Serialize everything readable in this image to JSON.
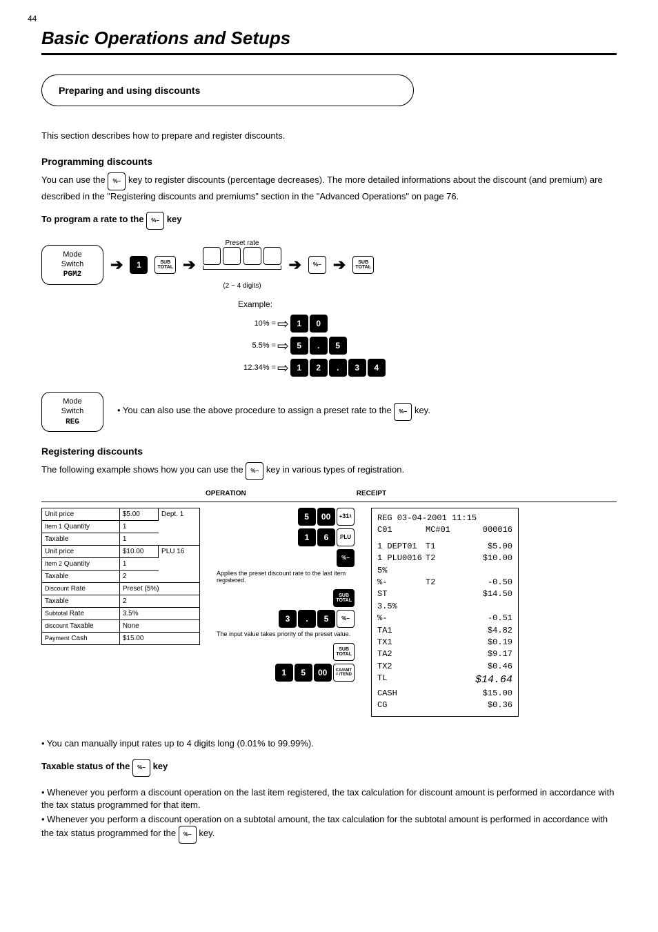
{
  "page_number": "44",
  "section_title": "Basic Operations and Setups",
  "box1_title": "Preparing and using discounts",
  "para1": "This section describes how to prepare and register discounts.",
  "programming_heading": "Programming discounts",
  "para2_a": "You can use the ",
  "para2_b": " key to register discounts (percentage decreases). The more detailed informations about the discount (and premium) are described in the \"Registering discounts and premiums\" section in the \"Advanced Operations\" on page 76.",
  "subhead1": "To program a rate to the ",
  "subhead1_b": " key",
  "flow_mode_label": "Mode\nSwitch",
  "key_1": "1",
  "key_subtotal": "SUB\nTOTAL",
  "over_label": "Preset rate",
  "key_pct_minus": "%−",
  "brace_label": "(2 ~ 4 digits)",
  "example_label": "Example:",
  "ex_10": "10% = ",
  "ex_55": "5.5% = ",
  "ex_1234": "12.34% = ",
  "mode_pgm_label": "Mode\nSwitch",
  "mode_pgm_value": "PGM2",
  "para3": "• You can also use the above procedure to assign a preset rate to the ",
  "para3_b": " key.",
  "reg_heading": "Registering discounts",
  "para4": "The following example shows how you can use the ",
  "para4_b": " key in various types of registration.",
  "flow_reg_label": "Mode\nSwitch",
  "flow_reg_value": "REG",
  "ex_table": {
    "header_op": "OPERATION",
    "header_rcpt": "RECEIPT",
    "rows": [
      [
        "Unit price",
        "$5.00",
        "Dept. 1"
      ],
      [
        "Item 1    Quantity",
        "1",
        ""
      ],
      [
        "Taxable",
        "1",
        ""
      ],
      [
        "Unit price",
        "$10.00",
        "PLU 16"
      ],
      [
        "Item 2    Quantity",
        "1",
        ""
      ],
      [
        "Taxable",
        "2",
        ""
      ],
      [
        "Discount     Rate",
        "Preset (5%)",
        ""
      ],
      [
        "Taxable",
        "2",
        ""
      ],
      [
        "Subtotal     Rate",
        "3.5%",
        ""
      ],
      [
        "discount     Taxable",
        "None",
        ""
      ],
      [
        "Payment    Cash",
        "$15.00",
        ""
      ]
    ]
  },
  "ops": [
    {
      "keys": [
        "5",
        "00",
        "+31"
      ],
      "note": ""
    },
    {
      "keys": [
        "1",
        "6",
        "PLU"
      ],
      "note": ""
    },
    {
      "keys": [
        "%−"
      ],
      "note": "Applies the preset discount rate to the last item registered.",
      "dark": true
    },
    {
      "keys": [
        "SUB"
      ],
      "note": "",
      "dark": true
    },
    {
      "keys": [
        "3",
        ".",
        "5",
        "%−"
      ],
      "note": "The input value takes priority of the preset value."
    },
    {
      "keys": [
        "SUB"
      ],
      "note": ""
    },
    {
      "keys": [
        "1",
        "5",
        "00",
        "CA/AMT"
      ],
      "note": ""
    }
  ],
  "receipt": {
    "header1": "REG  03-04-2001 11:15",
    "header2_l": "C01",
    "header2_c": "MC#01",
    "header2_r": "000016",
    "lines": [
      {
        "c1": "1 DEPT01",
        "c2": "T1",
        "c3": "$5.00"
      },
      {
        "c1": "1 PLU0016",
        "c2": "T2",
        "c3": "$10.00"
      },
      {
        "c1": "  5%",
        "c2": "",
        "c3": ""
      },
      {
        "c1": "%-",
        "c2": "T2",
        "c3": "-0.50"
      },
      {
        "c1": "ST",
        "c2": "",
        "c3": "$14.50"
      },
      {
        "c1": "  3.5%",
        "c2": "",
        "c3": ""
      },
      {
        "c1": "%-",
        "c2": "",
        "c3": "-0.51"
      },
      {
        "c1": "TA1",
        "c2": "",
        "c3": "$4.82"
      },
      {
        "c1": "TX1",
        "c2": "",
        "c3": "$0.19"
      },
      {
        "c1": "TA2",
        "c2": "",
        "c3": "$9.17"
      },
      {
        "c1": "TX2",
        "c2": "",
        "c3": "$0.46"
      }
    ],
    "total_label": "TL",
    "total_value": "$14.64",
    "cash_label": "CASH",
    "cash_value": "$15.00",
    "cg_label": "CG",
    "cg_value": "$0.36"
  },
  "footnote1_a": "• You can manually input rates up to 4 digits long (0.01% to 99.99%).",
  "tax_heading": "Taxable status of the ",
  "tax_heading_b": " key",
  "foot_para_a": "• Whenever you perform a discount operation on the last item registered, the tax calculation for discount amount is performed in accordance with the tax status programmed for that item.",
  "foot_para_b": "• Whenever you perform a discount operation on a subtotal amount, the tax calculation for the subtotal amount is performed in accordance with the tax status programmed for the ",
  "foot_para_b2": " key.",
  "key_labels": {
    "one": "1",
    "zero": "0",
    "five": "5",
    "two": "2",
    "three": "3",
    "four": "4",
    "six": "6",
    "dot": ".",
    "zerozero": "00",
    "plu": "PLU",
    "pctminus": "%−",
    "subtotal_top": "SUB",
    "subtotal_bot": "TOTAL",
    "caamt_top": "CA/AMT",
    "caamt_bot": "= /TEND",
    "plus31": "+ ³¹₁"
  }
}
